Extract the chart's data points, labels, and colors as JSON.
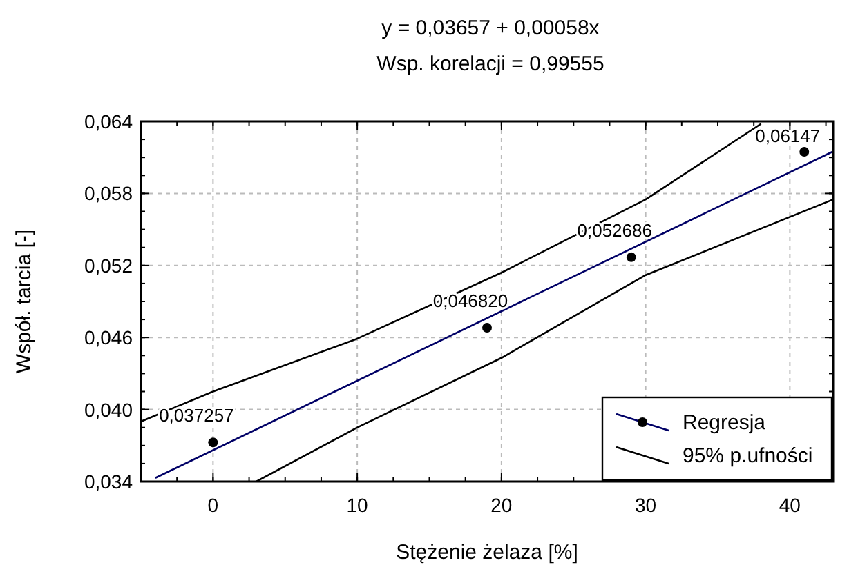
{
  "chart_data": {
    "type": "line",
    "title": "y = 0,03657 + 0,00058x",
    "subtitle": "Wsp. korelacji = 0,99555",
    "xlabel": "Stężenie żelaza [%]",
    "ylabel": "Współ. tarcia [-]",
    "xlim": [
      -5,
      43
    ],
    "ylim": [
      0.034,
      0.064
    ],
    "xticks": [
      0,
      10,
      20,
      30,
      40
    ],
    "yticks": [
      {
        "value": 0.034,
        "label": "0,034"
      },
      {
        "value": 0.04,
        "label": "0,040"
      },
      {
        "value": 0.046,
        "label": "0,046"
      },
      {
        "value": 0.052,
        "label": "0,052"
      },
      {
        "value": 0.058,
        "label": "0,058"
      },
      {
        "value": 0.064,
        "label": "0,064"
      }
    ],
    "grid": true,
    "legend": "bottom right",
    "series": [
      {
        "name": "Regresja",
        "color": "#000066",
        "marker": "none",
        "x": [
          -4,
          43
        ],
        "values": [
          0.0343,
          0.0615
        ]
      },
      {
        "type": "scatter",
        "color": "#000000",
        "marker": "circle",
        "x": [
          0,
          19,
          29,
          41
        ],
        "values": [
          0.037257,
          0.04682,
          0.052686,
          0.06147
        ],
        "value_labels": [
          "0,037257",
          "0,046820",
          "0,052686",
          "0,06147"
        ]
      },
      {
        "name": "95% p.ufności",
        "color": "#000000",
        "marker": "none",
        "x": [
          -5,
          0,
          10,
          20,
          30,
          38
        ],
        "values": [
          0.039,
          0.0415,
          0.0459,
          0.0514,
          0.0575,
          0.0638
        ]
      },
      {
        "color": "#000000",
        "marker": "none",
        "x": [
          3,
          10,
          20,
          30,
          43
        ],
        "values": [
          0.034,
          0.0385,
          0.0443,
          0.0512,
          0.0575
        ]
      }
    ]
  }
}
